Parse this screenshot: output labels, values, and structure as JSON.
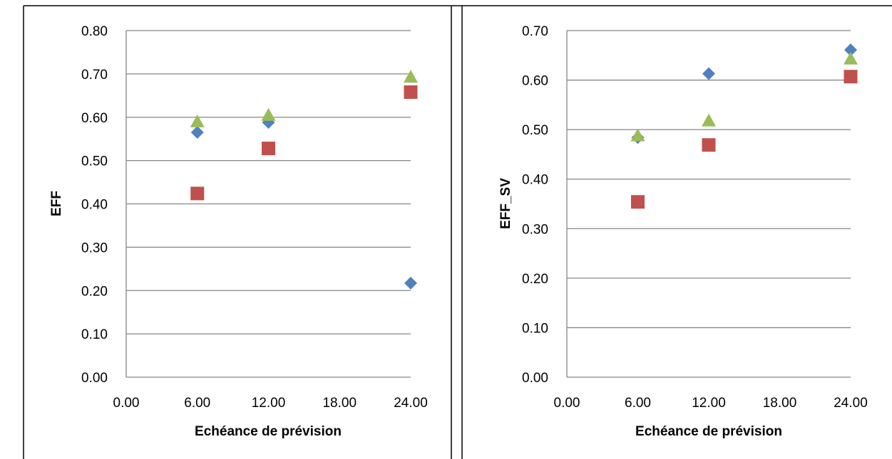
{
  "colors": {
    "series_diamond": "#4F81BD",
    "series_square": "#C0504D",
    "series_triangle": "#9BBB59",
    "grid": "#868686",
    "border": "#000000"
  },
  "chart_data": [
    {
      "type": "scatter",
      "title": "",
      "xlabel": "Echéance de prévision",
      "ylabel": "EFF",
      "xlim": [
        0,
        24
      ],
      "ylim": [
        0,
        0.8
      ],
      "x_ticks": [
        "0.00",
        "6.00",
        "12.00",
        "18.00",
        "24.00"
      ],
      "y_ticks": [
        "0.00",
        "0.10",
        "0.20",
        "0.30",
        "0.40",
        "0.50",
        "0.60",
        "0.70",
        "0.80"
      ],
      "grid": true,
      "legend": "none",
      "series": [
        {
          "marker": "diamond",
          "color": "#4F81BD",
          "points": [
            [
              6,
              0.565
            ],
            [
              12,
              0.588
            ],
            [
              24,
              0.217
            ]
          ]
        },
        {
          "marker": "square",
          "color": "#C0504D",
          "points": [
            [
              6,
              0.424
            ],
            [
              12,
              0.528
            ],
            [
              24,
              0.658
            ]
          ]
        },
        {
          "marker": "triangle",
          "color": "#9BBB59",
          "points": [
            [
              6,
              0.59
            ],
            [
              12,
              0.605
            ],
            [
              24,
              0.693
            ]
          ]
        }
      ]
    },
    {
      "type": "scatter",
      "title": "",
      "xlabel": "Echéance de prévision",
      "ylabel": "EFF_SV",
      "xlim": [
        0,
        24
      ],
      "ylim": [
        0,
        0.7
      ],
      "x_ticks": [
        "0.00",
        "6.00",
        "12.00",
        "18.00",
        "24.00"
      ],
      "y_ticks": [
        "0.00",
        "0.10",
        "0.20",
        "0.30",
        "0.40",
        "0.50",
        "0.60",
        "0.70"
      ],
      "grid": true,
      "legend": "none",
      "series": [
        {
          "marker": "diamond",
          "color": "#4F81BD",
          "points": [
            [
              6,
              0.484
            ],
            [
              12,
              0.613
            ],
            [
              24,
              0.661
            ]
          ]
        },
        {
          "marker": "square",
          "color": "#C0504D",
          "points": [
            [
              6,
              0.354
            ],
            [
              12,
              0.469
            ],
            [
              24,
              0.607
            ]
          ]
        },
        {
          "marker": "triangle",
          "color": "#9BBB59",
          "points": [
            [
              6,
              0.488
            ],
            [
              12,
              0.518
            ],
            [
              24,
              0.643
            ]
          ]
        }
      ]
    }
  ]
}
